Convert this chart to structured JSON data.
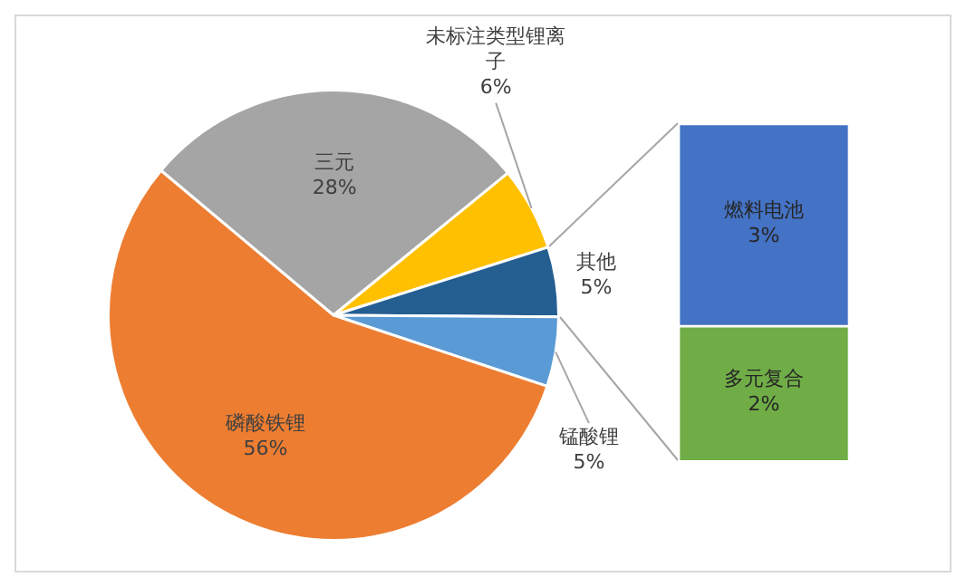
{
  "chart_data": [
    {
      "type": "pie",
      "categories": [
        "三元",
        "未标注类型锂离子",
        "其他",
        "锰酸锂",
        "磷酸铁锂"
      ],
      "values": [
        28,
        6,
        5,
        5,
        56
      ],
      "colors": [
        "#a5a5a5",
        "#ffc000",
        "#255e91",
        "#5b9bd5",
        "#ed7d31"
      ],
      "value_labels": [
        "28%",
        "6%",
        "5%",
        "5%",
        "56%"
      ],
      "legend": false
    },
    {
      "type": "bar",
      "stacked": true,
      "categories": [
        null
      ],
      "tick_labels": false,
      "legend": false,
      "series": [
        {
          "name": "多元复合",
          "color": "#70ad47",
          "values": [
            2
          ],
          "value_labels": [
            "2%"
          ]
        },
        {
          "name": "燃料电池",
          "color": "#4472c4",
          "values": [
            3
          ],
          "value_labels": [
            "3%"
          ]
        }
      ]
    }
  ]
}
